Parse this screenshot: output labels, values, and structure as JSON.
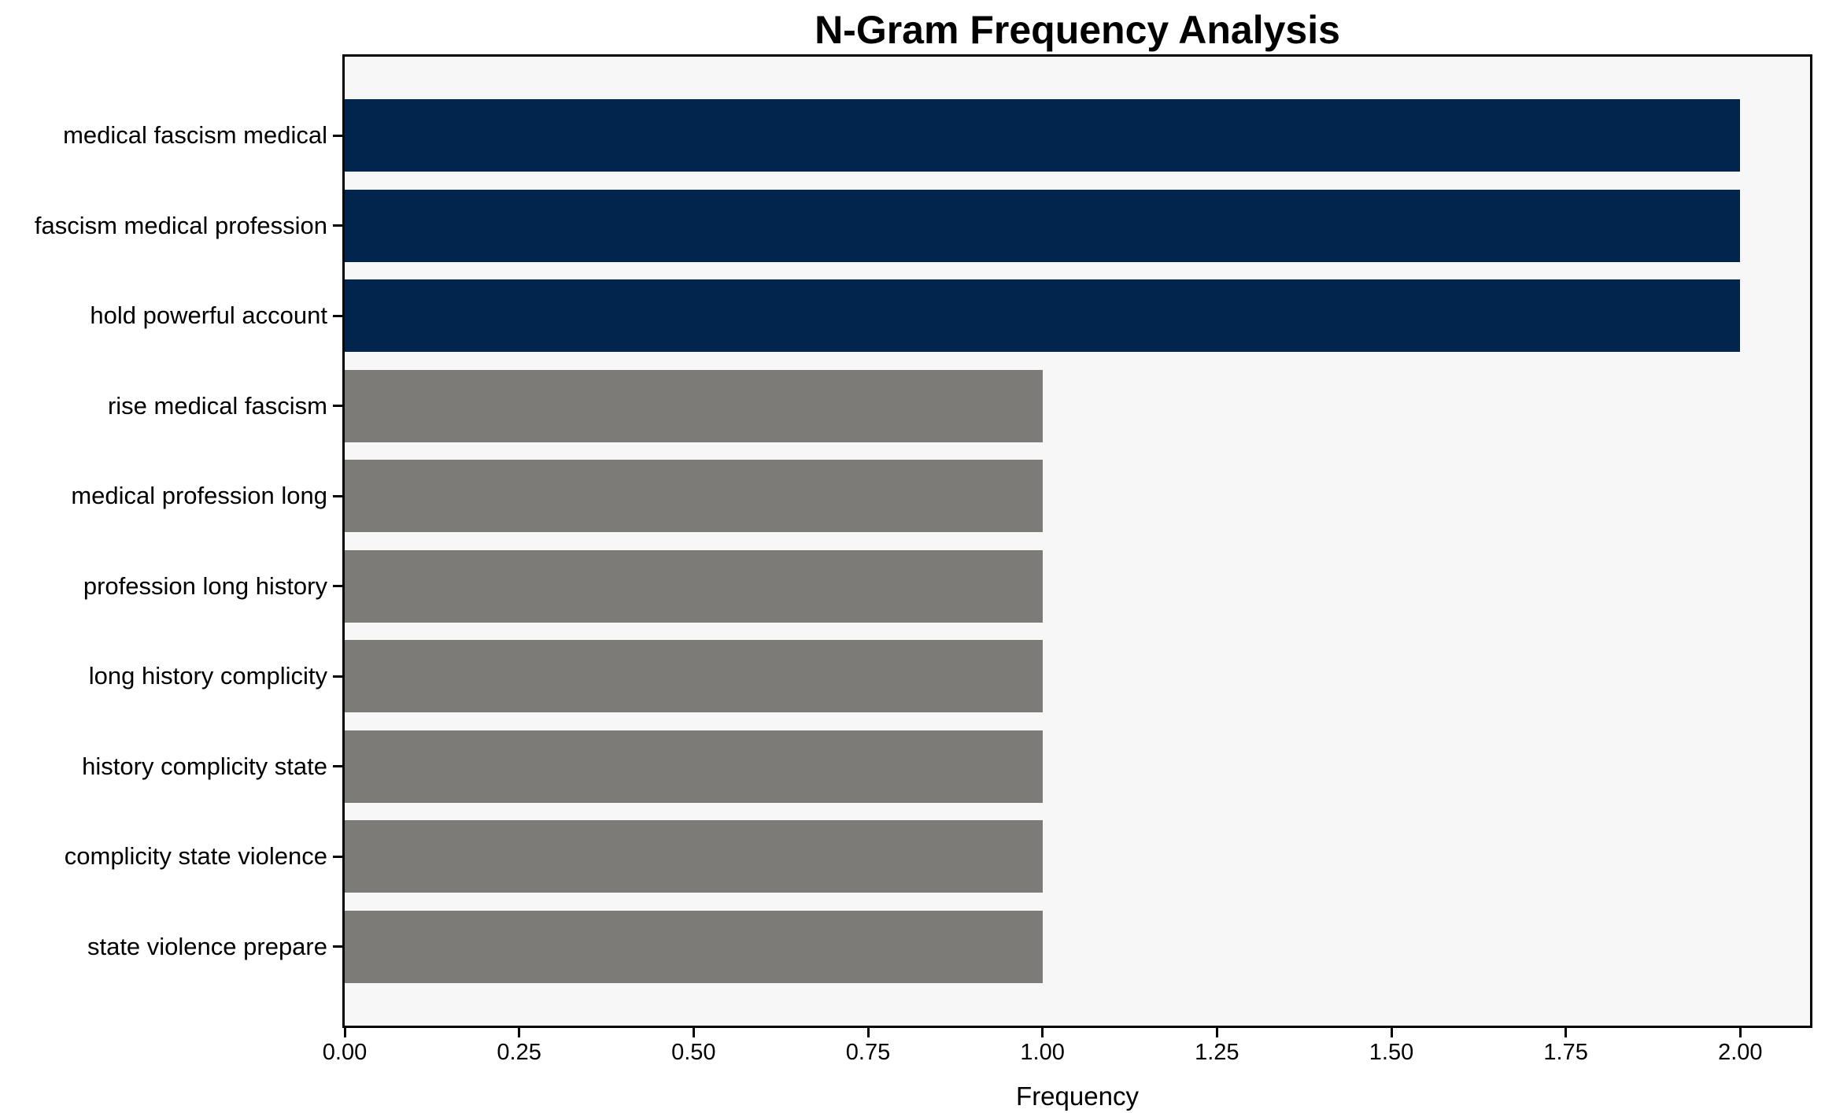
{
  "chart_data": {
    "type": "bar",
    "orientation": "horizontal",
    "title": "N-Gram Frequency Analysis",
    "xlabel": "Frequency",
    "ylabel": "",
    "categories": [
      "medical fascism medical",
      "fascism medical profession",
      "hold powerful account",
      "rise medical fascism",
      "medical profession long",
      "profession long history",
      "long history complicity",
      "history complicity state",
      "complicity state violence",
      "state violence prepare"
    ],
    "values": [
      2,
      2,
      2,
      1,
      1,
      1,
      1,
      1,
      1,
      1
    ],
    "bar_colors": [
      "#02254d",
      "#02254d",
      "#02254d",
      "#7c7b77",
      "#7c7b77",
      "#7c7b77",
      "#7c7b77",
      "#7c7b77",
      "#7c7b77",
      "#7c7b77"
    ],
    "xlim": [
      0,
      2.1
    ],
    "xtick_values": [
      0,
      0.25,
      0.5,
      0.75,
      1.0,
      1.25,
      1.5,
      1.75,
      2.0
    ],
    "xtick_labels": [
      "0.00",
      "0.25",
      "0.50",
      "0.75",
      "1.00",
      "1.25",
      "1.50",
      "1.75",
      "2.00"
    ],
    "grid": false,
    "legend_position": "none",
    "colors": {
      "bar_frequent": "#02254d",
      "bar_rare": "#7c7b77",
      "plot_bg": "#f7f7f7",
      "figure_bg": "#ffffff",
      "spine": "#000000",
      "text": "#000000"
    }
  }
}
